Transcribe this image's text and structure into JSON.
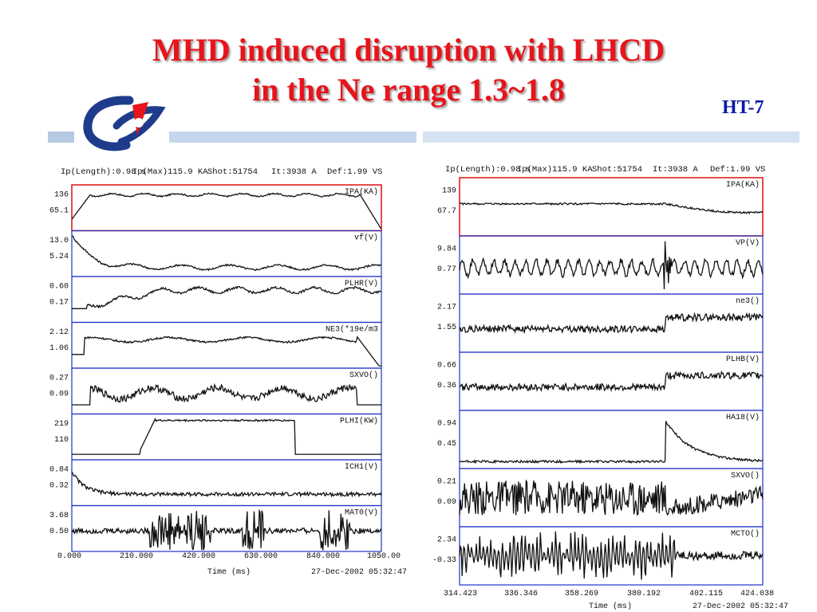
{
  "slide": {
    "title_line1": "MHD induced disruption with LHCD",
    "title_line2": "in the Ne range 1.3~1.8",
    "tag": "HT-7",
    "colors": {
      "title": "#e8141b",
      "tag": "#0a1aa8",
      "band": "#c5d6ec"
    }
  },
  "left_plot": {
    "header": {
      "ip_length": "Ip(Length):0.98 s",
      "ip_max": "Ip(Max)115.9 KA",
      "shot": "Shot:51754",
      "it": "It:3938 A",
      "def": "Def:1.99 VS"
    },
    "channels": [
      {
        "label": "IPA(KA)",
        "max": "136",
        "min": "65.1"
      },
      {
        "label": "vf(V)",
        "max": "13.0",
        "min": "5.24"
      },
      {
        "label": "PLHR(V)",
        "max": "0.60",
        "min": "0.17"
      },
      {
        "label": "NE3(*19e/m3",
        "max": "2.12",
        "min": "1.06"
      },
      {
        "label": "SXVO()",
        "max": "0.27",
        "min": "0.09"
      },
      {
        "label": "PLHI(KW)",
        "max": "219",
        "min": "110"
      },
      {
        "label": "ICH1(V)",
        "max": "0.84",
        "min": "0.32"
      },
      {
        "label": "MAT0(V)",
        "max": "3.68",
        "min": "0.50"
      }
    ],
    "x_ticks": [
      "0.000",
      "210.000",
      "420.000",
      "630.000",
      "840.000",
      "1050.00"
    ],
    "x_label": "Time (ms)",
    "timestamp": "27-Dec-2002 05:32:47"
  },
  "right_plot": {
    "header": {
      "ip_length": "Ip(Length):0.98 s",
      "ip_max": "Ip(Max)115.9 KA",
      "shot": "Shot:51754",
      "it": "It:3938 A",
      "def": "Def:1.99 VS"
    },
    "channels": [
      {
        "label": "IPA(KA)",
        "max": "139",
        "min": "67.7"
      },
      {
        "label": "VP(V)",
        "max": "9.84",
        "min": "0.77"
      },
      {
        "label": "ne3()",
        "max": "2.17",
        "min": "1.55"
      },
      {
        "label": "PLHB(V)",
        "max": "0.66",
        "min": "0.36"
      },
      {
        "label": "HA18(V)",
        "max": "0.94",
        "min": "0.45"
      },
      {
        "label": "SXVO()",
        "max": "0.21",
        "min": "0.09"
      },
      {
        "label": "MCTO()",
        "max": "2.34",
        "min": "-0.33"
      }
    ],
    "x_ticks": [
      "314.423",
      "336.346",
      "358.269",
      "380.192",
      "402.115",
      "424.038"
    ],
    "x_label": "Time (ms)",
    "timestamp": "27-Dec-2002 05:32:47"
  }
}
